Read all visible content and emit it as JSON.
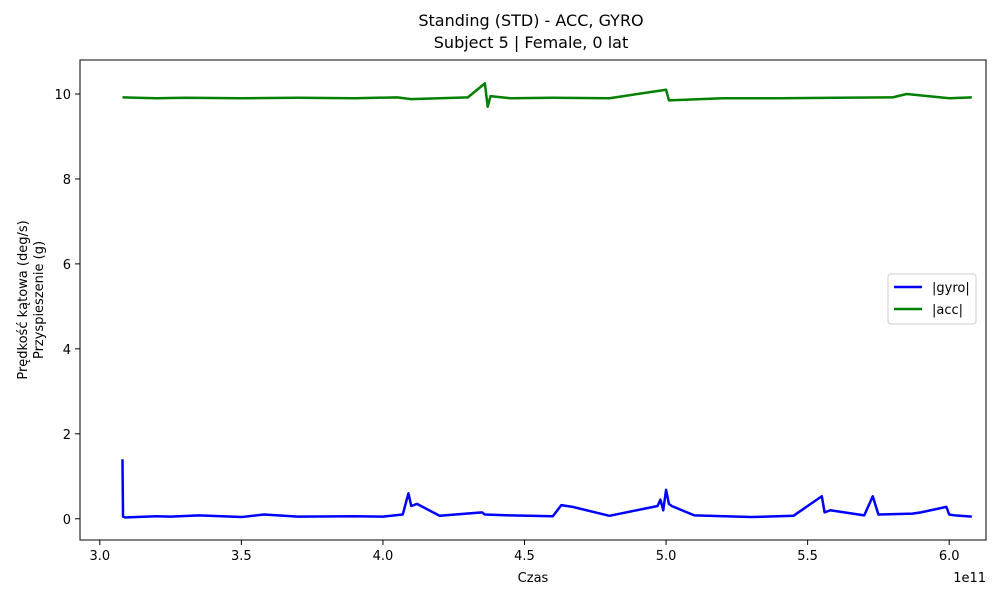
{
  "chart_data": {
    "type": "line",
    "title": "Standing (STD) - ACC, GYRO",
    "subtitle": "Subject 5 | Female, 0 lat",
    "xlabel": "Czas",
    "ylabel_lines": [
      "Prędkość kątowa (deg/s)",
      "Przyspieszenie (g)"
    ],
    "x_multiplier": "1e11",
    "xlim": [
      2.93,
      6.13
    ],
    "ylim": [
      -0.5,
      10.8
    ],
    "x_ticks": [
      3.0,
      3.5,
      4.0,
      4.5,
      5.0,
      5.5,
      6.0
    ],
    "x_tick_labels": [
      "3.0",
      "3.5",
      "4.0",
      "4.5",
      "5.0",
      "5.5",
      "6.0"
    ],
    "y_ticks": [
      0,
      2,
      4,
      6,
      8,
      10
    ],
    "y_tick_labels": [
      "0",
      "2",
      "4",
      "6",
      "8",
      "10"
    ],
    "grid": false,
    "legend_position": "center-right",
    "series": [
      {
        "name": "|gyro|",
        "color": "#0000ff",
        "x": [
          3.08,
          3.082,
          3.09,
          3.2,
          3.25,
          3.35,
          3.5,
          3.58,
          3.7,
          3.9,
          4.0,
          4.07,
          4.09,
          4.1,
          4.12,
          4.2,
          4.35,
          4.36,
          4.45,
          4.6,
          4.63,
          4.67,
          4.8,
          4.97,
          4.98,
          4.99,
          5.0,
          5.01,
          5.02,
          5.1,
          5.3,
          5.45,
          5.55,
          5.56,
          5.58,
          5.7,
          5.73,
          5.75,
          5.87,
          5.9,
          5.99,
          6.0,
          6.02,
          6.08
        ],
        "y": [
          1.4,
          0.05,
          0.03,
          0.06,
          0.05,
          0.08,
          0.04,
          0.1,
          0.05,
          0.06,
          0.05,
          0.1,
          0.6,
          0.3,
          0.35,
          0.07,
          0.15,
          0.1,
          0.08,
          0.06,
          0.32,
          0.28,
          0.07,
          0.3,
          0.45,
          0.2,
          0.68,
          0.35,
          0.3,
          0.08,
          0.04,
          0.07,
          0.53,
          0.15,
          0.2,
          0.08,
          0.53,
          0.1,
          0.12,
          0.15,
          0.28,
          0.1,
          0.08,
          0.05
        ]
      },
      {
        "name": "|acc|",
        "color": "#008000",
        "x": [
          3.08,
          3.2,
          3.3,
          3.5,
          3.7,
          3.9,
          4.05,
          4.1,
          4.2,
          4.3,
          4.36,
          4.37,
          4.38,
          4.45,
          4.6,
          4.8,
          5.0,
          5.01,
          5.2,
          5.4,
          5.6,
          5.8,
          5.85,
          6.0,
          6.08
        ],
        "y": [
          9.92,
          9.9,
          9.91,
          9.9,
          9.91,
          9.9,
          9.92,
          9.88,
          9.9,
          9.92,
          10.25,
          9.7,
          9.95,
          9.9,
          9.91,
          9.9,
          10.1,
          9.85,
          9.9,
          9.9,
          9.91,
          9.92,
          10.0,
          9.9,
          9.92
        ]
      }
    ]
  }
}
